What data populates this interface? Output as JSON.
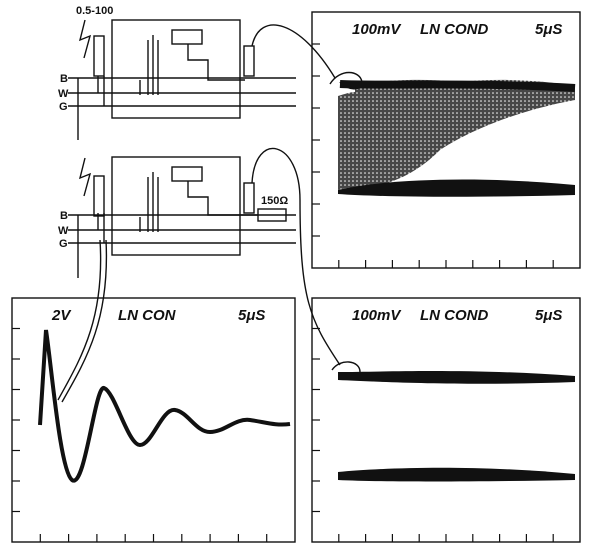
{
  "circuits": [
    {
      "source_label": "0.5-100",
      "terminals": [
        "B",
        "W",
        "G"
      ]
    },
    {
      "terminals": [
        "B",
        "W",
        "G"
      ],
      "resistor": "150Ω"
    }
  ],
  "scopes": [
    {
      "scale": "100mV",
      "mode": "LN COND",
      "time": "5μS"
    },
    {
      "scale": "2V",
      "mode": "LN CON",
      "time": "5μS"
    },
    {
      "scale": "100mV",
      "mode": "LN COND",
      "time": "5μS"
    }
  ]
}
